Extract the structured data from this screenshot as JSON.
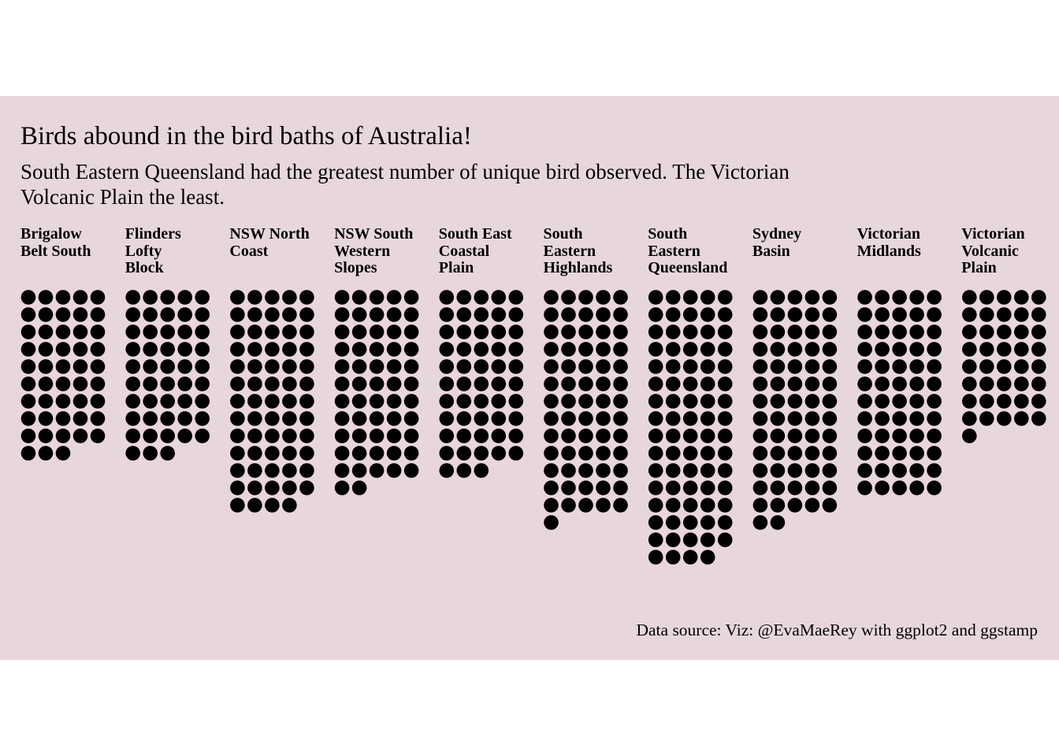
{
  "colors": {
    "panel_background": "#e8d6de",
    "point": "#000000",
    "page_background": "#ffffff"
  },
  "title": "Birds abound in the bird baths of Australia!",
  "subtitle": "South Eastern Queensland had the greatest number of unique bird observed. The Victorian Volcanic Plain the least.",
  "caption": "Data source:  Viz: @EvaMaeRey with ggplot2 and ggstamp",
  "chart_data": {
    "type": "waffle",
    "units_per_row": 5,
    "facets": [
      {
        "label": [
          "Brigalow",
          "Belt South"
        ],
        "value": 48
      },
      {
        "label": [
          "Flinders",
          "Lofty",
          "Block"
        ],
        "value": 48
      },
      {
        "label": [
          "NSW North",
          "Coast"
        ],
        "value": 64
      },
      {
        "label": [
          "NSW South",
          "Western",
          "Slopes"
        ],
        "value": 57
      },
      {
        "label": [
          "South East",
          "Coastal",
          "Plain"
        ],
        "value": 53
      },
      {
        "label": [
          "South",
          "Eastern",
          "Highlands"
        ],
        "value": 66
      },
      {
        "label": [
          "South",
          "Eastern",
          "Queensland"
        ],
        "value": 79
      },
      {
        "label": [
          "Sydney",
          "Basin"
        ],
        "value": 67
      },
      {
        "label": [
          "Victorian",
          "Midlands"
        ],
        "value": 60
      },
      {
        "label": [
          "Victorian",
          "Volcanic",
          "Plain"
        ],
        "value": 41
      }
    ]
  }
}
